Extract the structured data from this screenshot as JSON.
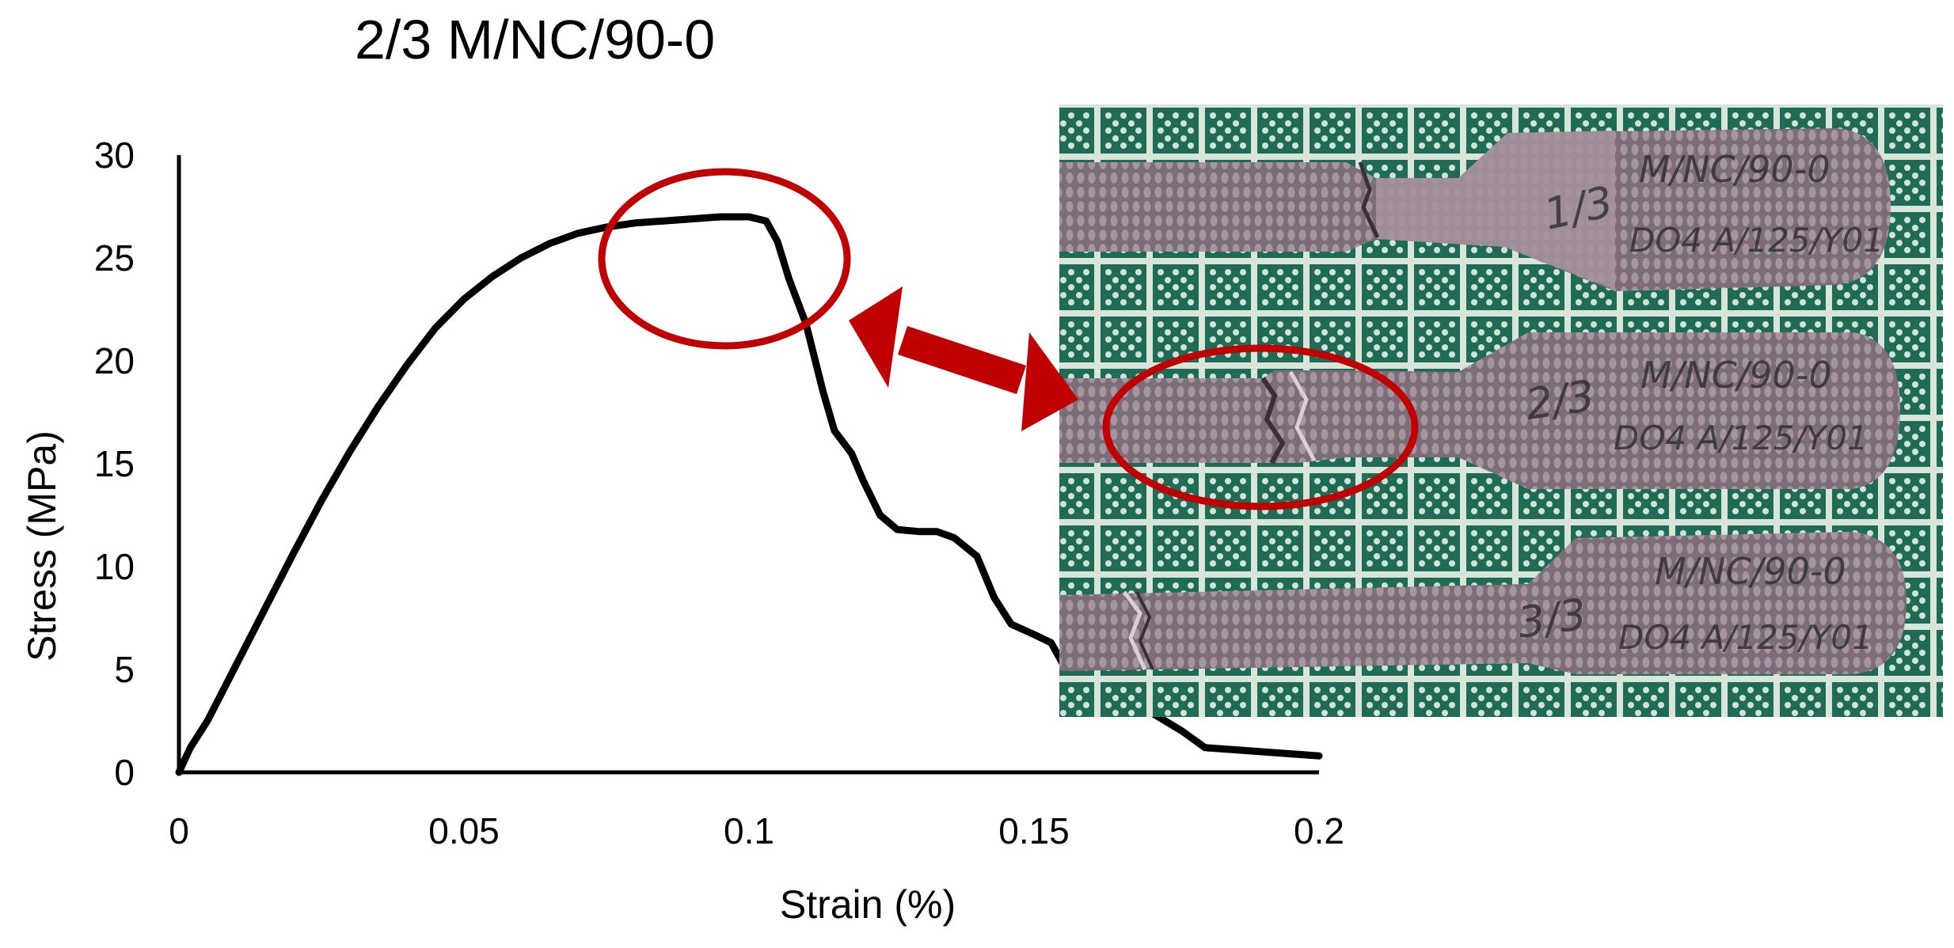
{
  "chart_data": {
    "type": "line",
    "title": "2/3   M/NC/90-0",
    "xlabel": "Strain (%)",
    "ylabel": "Stress (MPa)",
    "xlim": [
      0,
      0.2
    ],
    "ylim": [
      0,
      30
    ],
    "x_ticks": [
      "0",
      "0.05",
      "0.1",
      "0.15",
      "0.2"
    ],
    "y_ticks": [
      "0",
      "5",
      "10",
      "15",
      "20",
      "25",
      "30"
    ],
    "grid": false,
    "legend": "none",
    "series": [
      {
        "color": "#000000",
        "x": [
          0,
          0.002,
          0.005,
          0.01,
          0.015,
          0.02,
          0.025,
          0.03,
          0.035,
          0.04,
          0.045,
          0.05,
          0.055,
          0.06,
          0.065,
          0.07,
          0.075,
          0.08,
          0.085,
          0.09,
          0.095,
          0.1,
          0.103,
          0.105,
          0.107,
          0.11,
          0.113,
          0.115,
          0.118,
          0.12,
          0.123,
          0.126,
          0.13,
          0.133,
          0.136,
          0.14,
          0.143,
          0.146,
          0.15,
          0.153,
          0.155,
          0.158,
          0.162,
          0.166,
          0.17,
          0.173,
          0.176,
          0.18,
          0.185,
          0.19,
          0.195,
          0.2
        ],
        "y": [
          0,
          1.2,
          2.5,
          5.2,
          7.9,
          10.6,
          13.2,
          15.6,
          17.8,
          19.8,
          21.6,
          23.0,
          24.1,
          25.0,
          25.7,
          26.2,
          26.5,
          26.7,
          26.8,
          26.9,
          27.0,
          27.0,
          26.8,
          25.8,
          24.0,
          21.8,
          18.5,
          16.6,
          15.5,
          14.2,
          12.5,
          11.8,
          11.7,
          11.7,
          11.4,
          10.5,
          8.5,
          7.2,
          6.7,
          6.3,
          5.3,
          5.0,
          4.2,
          3.5,
          3.0,
          2.5,
          2.0,
          1.2,
          1.1,
          1.0,
          0.9,
          0.8
        ]
      }
    ]
  },
  "photo": {
    "specimens": [
      {
        "label": "1/3",
        "text_line1": "M/NC/90-0",
        "text_line2": "DO4 A/125/Y01"
      },
      {
        "label": "2/3",
        "text_line1": "M/NC/90-0",
        "text_line2": "DO4 A/125/Y01"
      },
      {
        "label": "3/3",
        "text_line1": "M/NC/90-0",
        "text_line2": "DO4 A/125/Y01"
      }
    ],
    "colors": {
      "mat": "#1f6b55",
      "specimen": "#9a8894",
      "highlight": "#c00000"
    }
  }
}
